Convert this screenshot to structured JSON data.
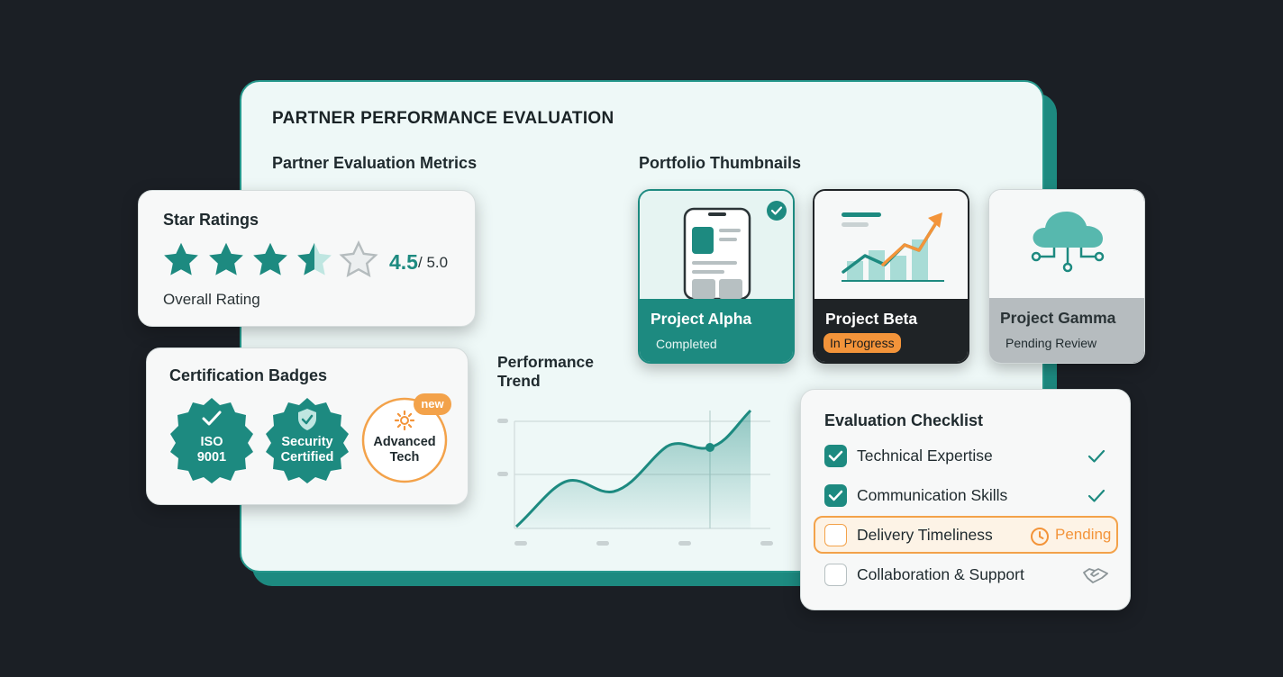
{
  "title": "PARTNER PERFORMANCE EVALUATION",
  "sections": {
    "metrics": "Partner Evaluation Metrics",
    "portfolio": "Portfolio Thumbnails"
  },
  "star_ratings": {
    "title": "Star Ratings",
    "rating": 4.5,
    "value": "4.5",
    "max": "/ 5.0",
    "caption": "Overall Rating",
    "accent": "#1d8a80"
  },
  "certifications": {
    "title": "Certification Badges",
    "badges": [
      {
        "line1": "ISO",
        "line2": "9001",
        "icon": "checkmark-icon"
      },
      {
        "line1": "Security",
        "line2": "Certified",
        "icon": "shield-check-icon"
      },
      {
        "line1": "Advanced",
        "line2": "Tech",
        "icon": "gear-icon",
        "tag": "new"
      }
    ]
  },
  "portfolio": [
    {
      "name": "Project Alpha",
      "status": "Completed",
      "icon": "mobile-app-icon"
    },
    {
      "name": "Project Beta",
      "status": "In Progress",
      "icon": "growth-chart-icon"
    },
    {
      "name": "Project Gamma",
      "status": "Pending Review",
      "icon": "cloud-network-icon"
    }
  ],
  "performance_trend": {
    "title_line1": "Performance",
    "title_line2": "Trend"
  },
  "checklist": {
    "title": "Evaluation Checklist",
    "items": [
      {
        "label": "Technical Expertise",
        "checked": true,
        "status_icon": "checkmark-icon"
      },
      {
        "label": "Communication Skills",
        "checked": true,
        "status_icon": "checkmark-icon"
      },
      {
        "label": "Delivery Timeliness",
        "checked": false,
        "status": "Pending",
        "status_icon": "clock-icon"
      },
      {
        "label": "Collaboration & Support",
        "checked": false,
        "status_icon": "handshake-icon"
      }
    ]
  }
}
